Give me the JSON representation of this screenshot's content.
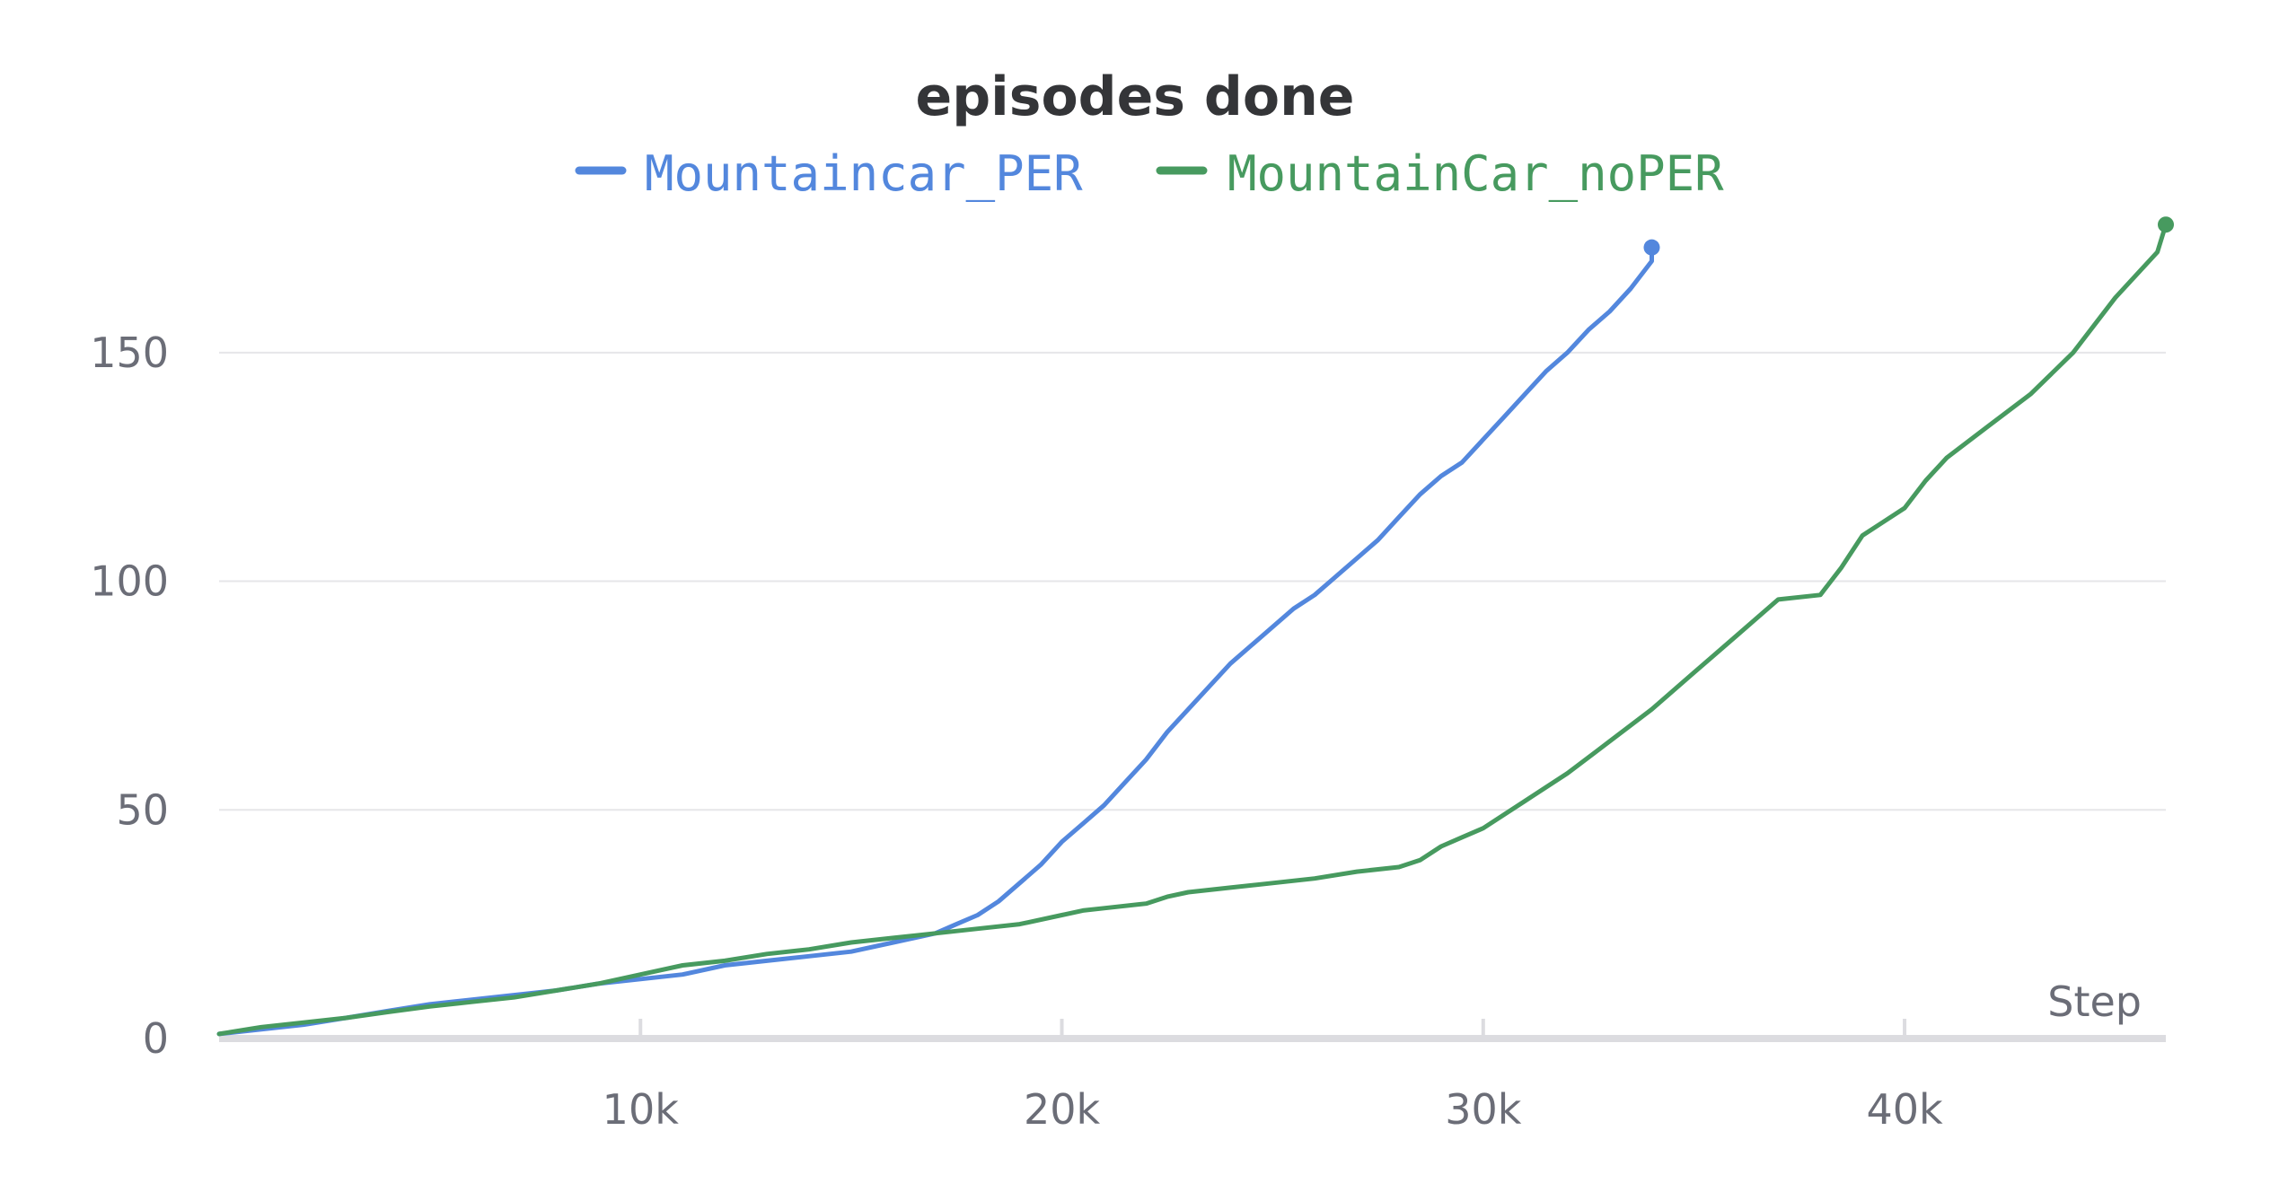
{
  "chart_data": {
    "type": "line",
    "title": "episodes done",
    "xlabel": "Step",
    "ylabel": "",
    "xlim": [
      0,
      46200
    ],
    "ylim": [
      0,
      180
    ],
    "grid": true,
    "legend_position": "top",
    "x_ticks": [
      10000,
      20000,
      30000,
      40000
    ],
    "x_tick_labels": [
      "10k",
      "20k",
      "30k",
      "40k"
    ],
    "y_ticks": [
      0,
      50,
      100,
      150
    ],
    "y_tick_labels": [
      "0",
      "50",
      "100",
      "150"
    ],
    "series": [
      {
        "name": "Mountaincar_PER",
        "color": "#5387dd",
        "x": [
          0,
          1000,
          2000,
          3000,
          4000,
          5000,
          6000,
          7000,
          8000,
          9000,
          10000,
          11000,
          12000,
          13000,
          14000,
          15000,
          16000,
          17000,
          17500,
          18000,
          18500,
          19000,
          19500,
          20000,
          20500,
          21000,
          21500,
          22000,
          22500,
          23000,
          23500,
          24000,
          24500,
          25000,
          25500,
          26000,
          26500,
          27000,
          27500,
          28000,
          28500,
          29000,
          29500,
          30000,
          30500,
          31000,
          31500,
          32000,
          32500,
          33000,
          33500,
          34000
        ],
        "y": [
          1,
          2,
          3,
          4.5,
          6,
          7.5,
          8.5,
          9.5,
          10.5,
          12,
          13,
          14,
          16,
          17,
          18,
          19,
          21,
          23,
          25,
          27,
          30,
          34,
          38,
          43,
          47,
          51,
          56,
          61,
          67,
          72,
          77,
          82,
          86,
          90,
          94,
          97,
          101,
          105,
          109,
          114,
          119,
          123,
          126,
          131,
          136,
          141,
          146,
          150,
          155,
          159,
          164,
          170
        ],
        "end_x": 34000,
        "end_y": 173
      },
      {
        "name": "MountainCar_noPER",
        "color": "#479a5f",
        "x": [
          0,
          1000,
          2000,
          3000,
          4000,
          5000,
          6000,
          7000,
          8000,
          9000,
          10000,
          11000,
          12000,
          13000,
          14000,
          15000,
          16000,
          17000,
          18000,
          19000,
          20000,
          20500,
          21000,
          22000,
          22500,
          23000,
          24000,
          25000,
          26000,
          27000,
          28000,
          28500,
          29000,
          29500,
          30000,
          31000,
          32000,
          33000,
          34000,
          35000,
          36000,
          37000,
          38000,
          38500,
          39000,
          39500,
          40000,
          40500,
          41000,
          42000,
          43000,
          44000,
          45000,
          46000
        ],
        "y": [
          1,
          2.5,
          3.5,
          4.5,
          5.8,
          7,
          8,
          9,
          10.5,
          12,
          14,
          16,
          17,
          18.5,
          19.5,
          21,
          22,
          23,
          24,
          25,
          27,
          28,
          28.5,
          29.5,
          31,
          32,
          33,
          34,
          35,
          36.5,
          37.5,
          39,
          42,
          44,
          46,
          52,
          58,
          65,
          72,
          80,
          88,
          96,
          97,
          103,
          110,
          113,
          116,
          122,
          127,
          134,
          141,
          150,
          162,
          172
        ],
        "end_x": 46200,
        "end_y": 178
      }
    ]
  }
}
